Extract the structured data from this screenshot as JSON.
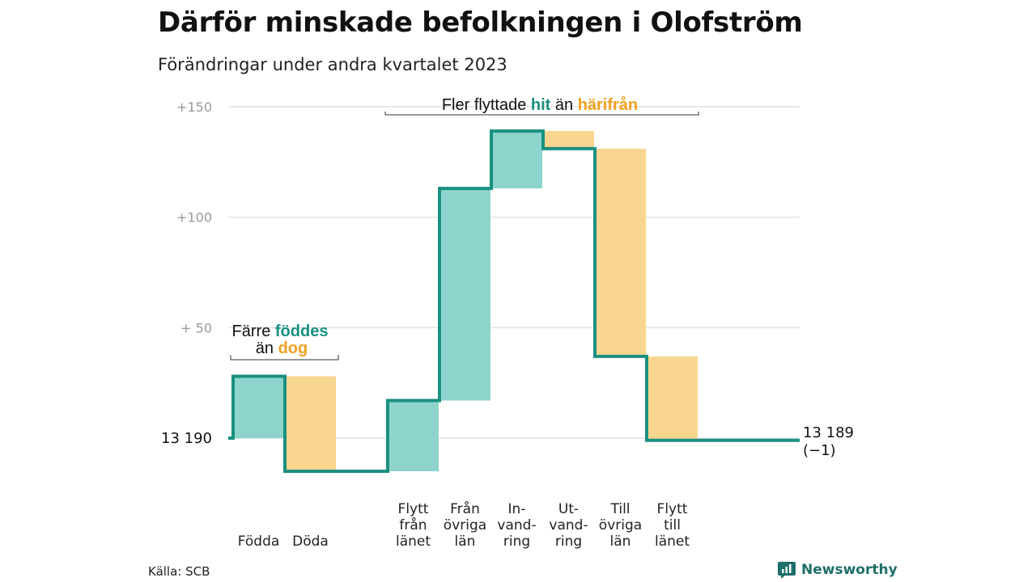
{
  "title": "Därför minskade befolkningen i Olofström",
  "subtitle": "Förändringar under andra kvartalet 2023",
  "source": "Källa: SCB",
  "brand": "Newsworthy",
  "colors": {
    "positive_fill": "#8dd5cc",
    "negative_fill": "#f9d690",
    "step_line": "#1a9080",
    "hit_text": "#1a9080",
    "harifran_text": "#f0a020",
    "grid": "#e2e2e2",
    "tick_text": "#999999",
    "logo": "#1f6f6a"
  },
  "chart_data": {
    "type": "waterfall",
    "baseline": 13190,
    "ylim": [
      -15,
      150
    ],
    "y_ticks": [
      {
        "value": 150,
        "label": "+150"
      },
      {
        "value": 100,
        "label": "+100"
      },
      {
        "value": 50,
        "label": "+  50"
      },
      {
        "value": 0,
        "label": "13  190"
      }
    ],
    "categories": [
      {
        "label": [
          "Födda"
        ],
        "delta": 28,
        "group": "natural"
      },
      {
        "label": [
          "Döda"
        ],
        "delta": -43,
        "group": "natural"
      },
      {
        "label": [
          "Flytt",
          "från",
          "länet"
        ],
        "delta": 32,
        "group": "migration"
      },
      {
        "label": [
          "Från",
          "övriga",
          "län"
        ],
        "delta": 96,
        "group": "migration"
      },
      {
        "label": [
          "In-",
          "vand-",
          "ring"
        ],
        "delta": 26,
        "group": "migration"
      },
      {
        "label": [
          "Ut-",
          "vand-",
          "ring"
        ],
        "delta": -8,
        "group": "migration"
      },
      {
        "label": [
          "Till",
          "övriga",
          "län"
        ],
        "delta": -94,
        "group": "migration"
      },
      {
        "label": [
          "Flytt",
          "till",
          "länet"
        ],
        "delta": -38,
        "group": "migration"
      }
    ],
    "end_value": "13 189",
    "end_change": "(−1)",
    "annotations": {
      "natural": {
        "line1_a": "Färre ",
        "line1_b": "föddes",
        "line2_a": "än ",
        "line2_b": "dog"
      },
      "migration": {
        "a": "Fler flyttade ",
        "b": "hit",
        "c": " än ",
        "d": "härifrån"
      }
    }
  }
}
